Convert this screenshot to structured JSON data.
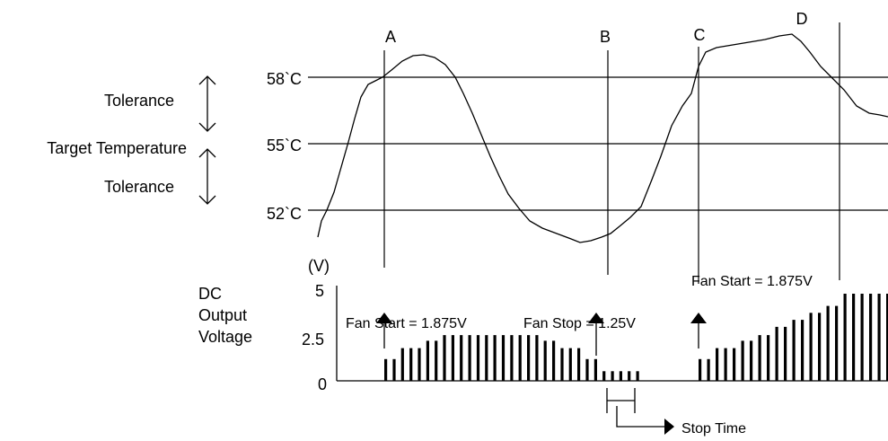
{
  "markers": {
    "a": "A",
    "b": "B",
    "c": "C",
    "d": "D"
  },
  "temperature_axis": {
    "ticks": [
      "58`C",
      "55`C",
      "52`C"
    ]
  },
  "left_labels": {
    "tolerance_upper": "Tolerance",
    "target": "Target Temperature",
    "tolerance_lower": "Tolerance"
  },
  "voltage_axis": {
    "unit": "(V)",
    "title_lines": [
      "DC",
      "Output",
      "Voltage"
    ],
    "ticks": [
      "5",
      "2.5",
      "0"
    ]
  },
  "annotations": {
    "fan_start_1": "Fan Start = 1.875V",
    "fan_stop": "Fan Stop = 1.25V",
    "fan_start_2": "Fan Start = 1.875V",
    "stop_time": "Stop Time"
  },
  "chart_data": {
    "type": "bar",
    "bars_v": [
      1.25,
      1.25,
      1.875,
      1.875,
      1.875,
      2.3,
      2.3,
      2.625,
      2.625,
      2.625,
      2.625,
      2.625,
      2.625,
      2.625,
      2.625,
      2.625,
      2.625,
      2.625,
      2.625,
      2.3,
      2.3,
      1.875,
      1.875,
      1.875,
      1.25,
      1.25,
      0.55,
      0.55,
      0.55,
      0.55,
      0.55,
      1.25,
      1.25,
      1.875,
      1.875,
      1.875,
      2.3,
      2.3,
      2.625,
      2.625,
      3.1,
      3.1,
      3.5,
      3.5,
      3.9,
      3.9,
      4.3,
      4.3,
      5,
      5,
      5,
      5,
      5,
      5,
      5,
      5,
      5,
      5
    ],
    "ylim": [
      0,
      5
    ]
  }
}
